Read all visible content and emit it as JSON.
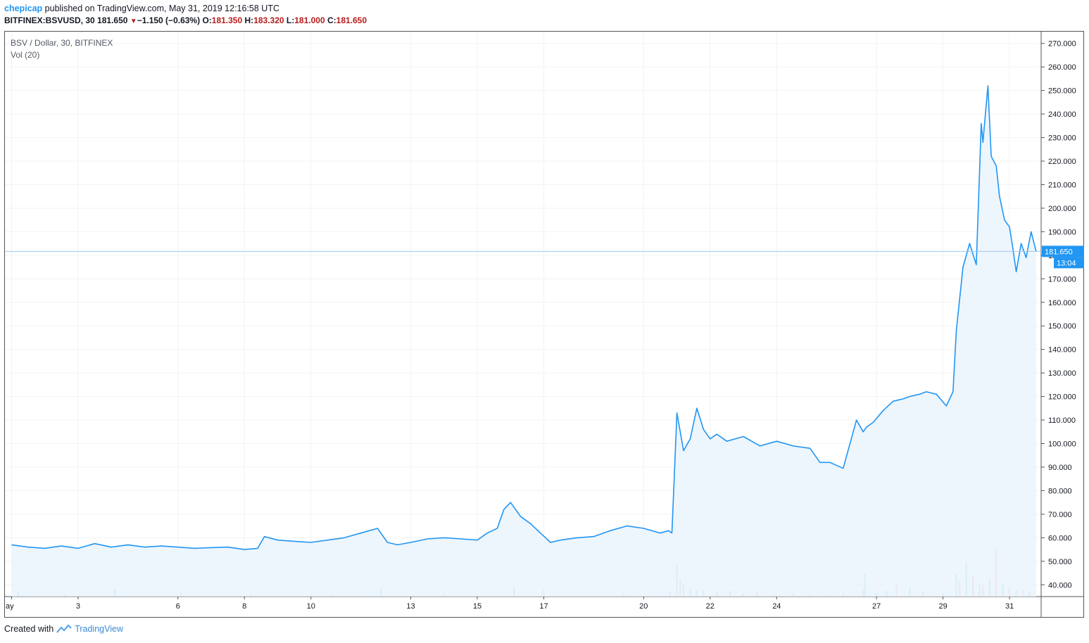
{
  "header": {
    "publisher": "chepicap",
    "published_text": "published on TradingView.com, May 31, 2019 12:16:58 UTC",
    "symbol": "BITFINEX:BSVUSD, 30",
    "last": "181.650",
    "change": "−1.150 (−0.63%)",
    "open_label": "O:",
    "open": "181.350",
    "high_label": "H:",
    "high": "183.320",
    "low_label": "L:",
    "low": "181.000",
    "close_label": "C:",
    "close": "181.650"
  },
  "legend": {
    "title": "BSV / Dollar, 30, BITFINEX",
    "indicator": "Vol (20)"
  },
  "footer": {
    "created_with": "Created with",
    "brand": "TradingView"
  },
  "colors": {
    "line": "#2196f3",
    "area": "#eaf3fd",
    "grid": "#f0f3f6",
    "vol_up": "#26a69a",
    "vol_down": "#ef5350",
    "price_tag": "#2196f3"
  },
  "chart_data": {
    "type": "area",
    "title": "BSV / Dollar, 30, BITFINEX",
    "ylim": [
      35,
      275
    ],
    "y_ticks": [
      "270.000",
      "260.000",
      "250.000",
      "240.000",
      "230.000",
      "220.000",
      "210.000",
      "200.000",
      "190.000",
      "180.000",
      "170.000",
      "160.000",
      "150.000",
      "140.000",
      "130.000",
      "120.000",
      "110.000",
      "100.000",
      "90.000",
      "80.000",
      "70.000",
      "60.000",
      "50.000",
      "40.000"
    ],
    "y_tick_values": [
      270,
      260,
      250,
      240,
      230,
      220,
      210,
      200,
      190,
      180,
      170,
      160,
      150,
      140,
      130,
      120,
      110,
      100,
      90,
      80,
      70,
      60,
      50,
      40
    ],
    "x_ticks": [
      {
        "label": "ay",
        "day": 1
      },
      {
        "label": "3",
        "day": 3
      },
      {
        "label": "6",
        "day": 6
      },
      {
        "label": "8",
        "day": 8
      },
      {
        "label": "10",
        "day": 10
      },
      {
        "label": "13",
        "day": 13
      },
      {
        "label": "15",
        "day": 15
      },
      {
        "label": "17",
        "day": 17
      },
      {
        "label": "20",
        "day": 20
      },
      {
        "label": "22",
        "day": 22
      },
      {
        "label": "24",
        "day": 24
      },
      {
        "label": "27",
        "day": 27
      },
      {
        "label": "29",
        "day": 29
      },
      {
        "label": "31",
        "day": 31
      }
    ],
    "last_price": "181.650",
    "countdown": "13:04",
    "grid": true,
    "series": [
      {
        "x": [
          1.0,
          1.5,
          2.0,
          2.5,
          3.0,
          3.5,
          4.0,
          4.5,
          5.0,
          5.5,
          6.0,
          6.5,
          7.0,
          7.5,
          8.0,
          8.4,
          8.6,
          9.0,
          9.5,
          10.0,
          10.5,
          11.0,
          11.5,
          12.0,
          12.3,
          12.6,
          13.0,
          13.5,
          14.0,
          14.5,
          15.0,
          15.3,
          15.6,
          15.8,
          16.0,
          16.3,
          16.6,
          16.9,
          17.2,
          17.5,
          18.0,
          18.5,
          19.0,
          19.5,
          20.0,
          20.5,
          20.75,
          20.85,
          21.0,
          21.2,
          21.4,
          21.6,
          21.8,
          22.0,
          22.2,
          22.5,
          23.0,
          23.5,
          24.0,
          24.5,
          25.0,
          25.3,
          25.6,
          26.0,
          26.4,
          26.6,
          26.7,
          26.9,
          27.2,
          27.5,
          27.8,
          28.0,
          28.3,
          28.5,
          28.8,
          29.1,
          29.3,
          29.4,
          29.6,
          29.8,
          30.0,
          30.15,
          30.2,
          30.35,
          30.45,
          30.6,
          30.7,
          30.85,
          31.0,
          31.1,
          31.2,
          31.35,
          31.5,
          31.65,
          31.8
        ],
        "y": [
          57.0,
          56.0,
          55.5,
          56.5,
          55.5,
          57.5,
          56.0,
          57.0,
          56.0,
          56.5,
          56.0,
          55.5,
          55.8,
          56.0,
          55.0,
          55.5,
          60.5,
          59.0,
          58.5,
          58.0,
          59.0,
          60.0,
          62.0,
          64.0,
          58.0,
          57.0,
          58.0,
          59.5,
          60.0,
          59.5,
          59.0,
          62.0,
          64.0,
          72.0,
          75.0,
          69.0,
          66.0,
          62.0,
          58.0,
          59.0,
          60.0,
          60.5,
          63.0,
          65.0,
          64.0,
          62.0,
          63.0,
          62.0,
          113.0,
          97.0,
          102.0,
          115.0,
          106.0,
          102.0,
          104.0,
          101.0,
          103.0,
          99.0,
          101.0,
          99.0,
          98.0,
          92.0,
          92.0,
          89.5,
          110.0,
          105.0,
          107.0,
          109.0,
          114.0,
          118.0,
          119.0,
          120.0,
          121.0,
          122.0,
          121.0,
          116.0,
          122.0,
          148.0,
          175.0,
          185.0,
          176.0,
          236.0,
          228.0,
          252.0,
          222.0,
          218.0,
          205.0,
          195.0,
          192.0,
          183.0,
          173.0,
          185.0,
          179.0,
          190.0,
          181.65
        ]
      }
    ],
    "volume": {
      "x": [
        1.2,
        2.6,
        4.1,
        6.1,
        8.2,
        10.6,
        12.1,
        14.0,
        16.1,
        17.0,
        19.4,
        20.8,
        21.0,
        21.1,
        21.2,
        21.4,
        21.6,
        21.8,
        22.2,
        22.6,
        23.0,
        23.4,
        23.9,
        24.5,
        25.0,
        25.5,
        26.0,
        26.6,
        26.65,
        27.0,
        27.3,
        27.6,
        28.0,
        28.4,
        29.0,
        29.4,
        29.5,
        29.7,
        29.9,
        30.1,
        30.2,
        30.4,
        30.6,
        30.8,
        31.0,
        31.2,
        31.4,
        31.6
      ],
      "v": [
        4,
        2,
        6,
        5,
        3,
        2,
        7,
        3,
        8,
        6,
        3,
        4,
        28,
        15,
        10,
        8,
        5,
        6,
        4,
        5,
        3,
        4,
        2,
        3,
        2,
        2,
        3,
        6,
        20,
        3,
        5,
        10,
        8,
        4,
        3,
        20,
        14,
        30,
        18,
        12,
        10,
        16,
        42,
        12,
        8,
        6,
        5,
        4
      ],
      "up": [
        1,
        1,
        1,
        0,
        1,
        1,
        1,
        0,
        1,
        1,
        0,
        1,
        0,
        1,
        0,
        1,
        1,
        0,
        1,
        0,
        1,
        0,
        1,
        0,
        1,
        0,
        1,
        0,
        1,
        1,
        1,
        0,
        1,
        0,
        1,
        1,
        0,
        1,
        0,
        1,
        0,
        1,
        0,
        1,
        0,
        1,
        0,
        1
      ]
    }
  }
}
